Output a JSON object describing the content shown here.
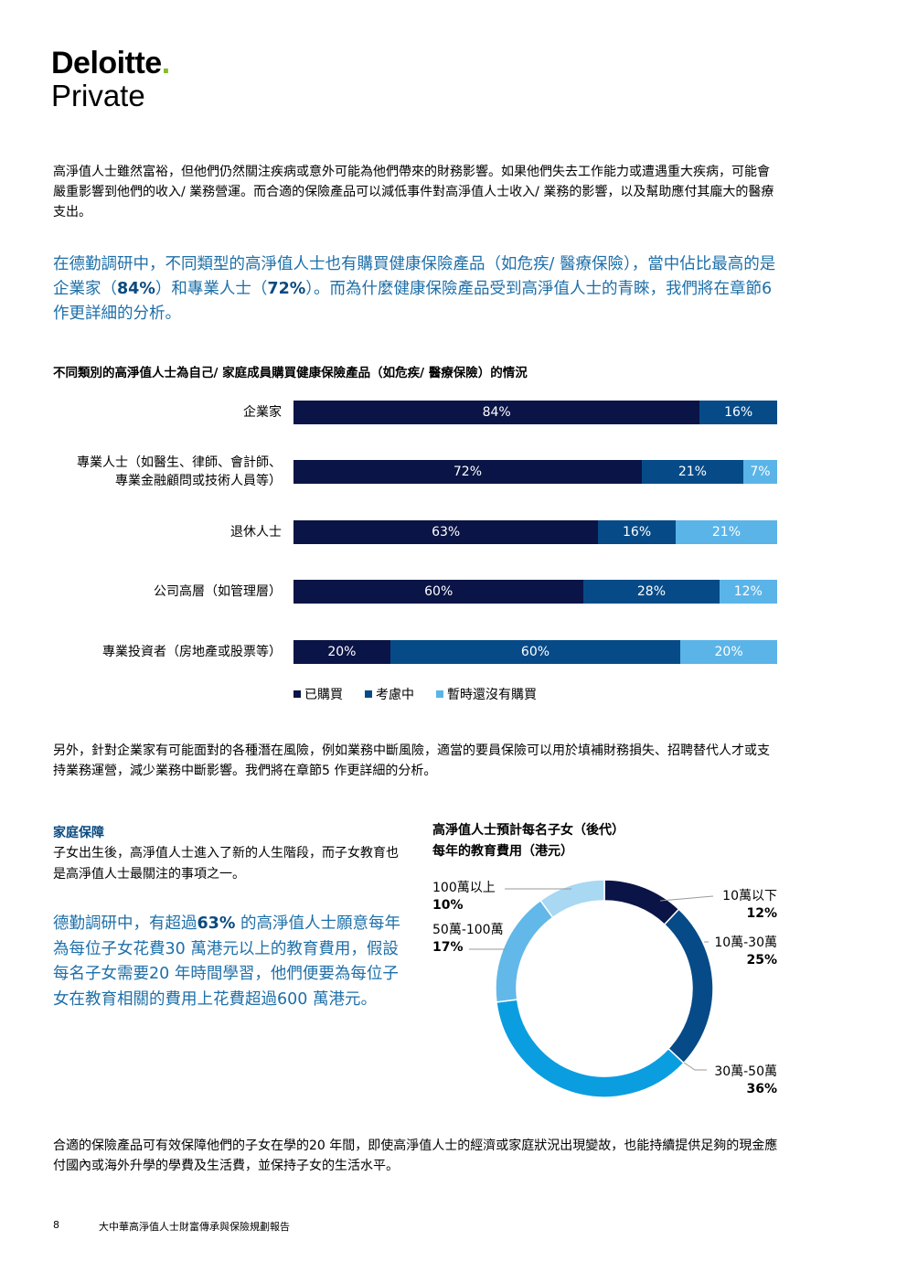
{
  "logo": {
    "name": "Deloitte",
    "dot": ".",
    "sub": "Private"
  },
  "paragraphs": {
    "p1": "高淨值人士雖然富裕，但他們仍然關注疾病或意外可能為他們帶來的財務影響。如果他們失去工作能力或遭遇重大疾病，可能會嚴重影響到他們的收入/ 業務營運。而合適的保險產品可以減低事件對高淨值人士收入/ 業務的影響，以及幫助應付其龐大的醫療支出。",
    "p2_a": "在德勤調研中，不同類型的高淨值人士也有購買健康保險產品（如危疾/ 醫療保險），當中佔比最高的是企業家（",
    "p2_b1": "84%",
    "p2_c": "）和專業人士（",
    "p2_b2": "72%",
    "p2_d": "）。而為什麼健康保險產品受到高淨值人士的青睞，我們將在章節6 作更詳細的分析。",
    "p3": "另外，針對企業家有可能面對的各種潛在風險，例如業務中斷風險，適當的要員保險可以用於填補財務損失、招聘替代人才或支持業務運營，減少業務中斷影響。我們將在章節5 作更詳細的分析。",
    "p4": "合適的保險產品可有效保障他們的子女在學的20 年間，即使高淨值人士的經濟或家庭狀況出現變故，也能持續提供足夠的現金應付國內或海外升學的學費及生活費，並保持子女的生活水平。"
  },
  "chart_data": [
    {
      "type": "bar",
      "orientation": "horizontal-stacked",
      "title": "不同類別的高淨值人士為自己/ 家庭成員購買健康保險產品（如危疾/ 醫療保險）的情況",
      "categories": [
        "企業家",
        "專業人士（如醫生、律師、會計師、專業金融顧問或技術人員等）",
        "退休人士",
        "公司高層（如管理層）",
        "專業投資者（房地產或股票等）"
      ],
      "category_lines": [
        [
          "企業家"
        ],
        [
          "專業人士（如醫生、律師、會計師、",
          "專業金融顧問或技術人員等）"
        ],
        [
          "退休人士"
        ],
        [
          "公司高層（如管理層）"
        ],
        [
          "專業投資者（房地產或股票等）"
        ]
      ],
      "series": [
        {
          "name": "已購買",
          "values": [
            84,
            72,
            63,
            60,
            20
          ],
          "labels": [
            "84%",
            "72%",
            "63%",
            "60%",
            "20%"
          ],
          "color": "#0a1446"
        },
        {
          "name": "考慮中",
          "values": [
            16,
            21,
            16,
            28,
            60
          ],
          "labels": [
            "16%",
            "21%",
            "16%",
            "28%",
            "60%"
          ],
          "color": "#064b88"
        },
        {
          "name": "暫時還沒有購買",
          "values": [
            0,
            7,
            21,
            12,
            20
          ],
          "labels": [
            "",
            "7%",
            "21%",
            "12%",
            "20%"
          ],
          "color": "#5ab4e8"
        }
      ],
      "xlim": [
        0,
        100
      ],
      "legend": "bottom"
    },
    {
      "type": "pie",
      "style": "donut",
      "title_lines": [
        "高淨值人士預計每名子女（後代）",
        "每年的教育費用（港元）"
      ],
      "slices": [
        {
          "name": "10萬以下",
          "value": 12,
          "label": "12%",
          "color": "#0a1446"
        },
        {
          "name": "10萬-30萬",
          "value": 25,
          "label": "25%",
          "color": "#064b88"
        },
        {
          "name": "30萬-50萬",
          "value": 36,
          "label": "36%",
          "color": "#0a9ee0"
        },
        {
          "name": "50萬-100萬",
          "value": 17,
          "label": "17%",
          "color": "#62b8e8"
        },
        {
          "name": "100萬以上",
          "value": 10,
          "label": "10%",
          "color": "#a8d8f2"
        }
      ]
    }
  ],
  "family": {
    "heading": "家庭保障",
    "text": "子女出生後，高淨值人士進入了新的人生階段，而子女教育也是高淨值人士最關注的事項之一。",
    "blue_a": "德勤調研中，有超過",
    "blue_b": "63%",
    "blue_c": " 的高淨值人士願意每年為每位子女花費30 萬港元以上的教育費用，假設每名子女需要20 年時間學習，他們便要為每位子女在教育相關的費用上花費超過600 萬港元。"
  },
  "footer": {
    "page": "8",
    "title": "大中華高淨值人士財富傳承與保險規劃報告"
  }
}
